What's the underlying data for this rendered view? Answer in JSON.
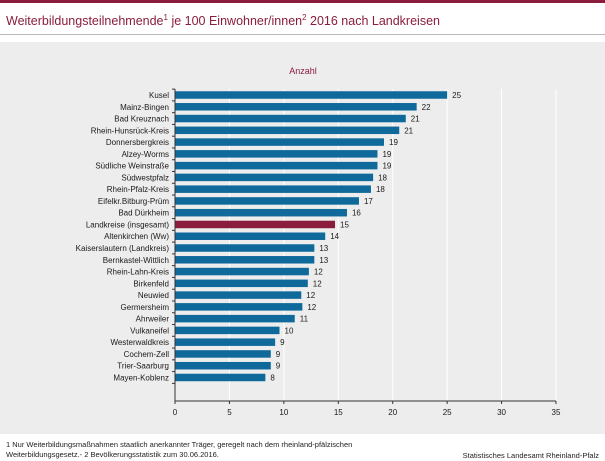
{
  "title": {
    "main": "Weiterbildungsteilnehmende",
    "sup1": "1",
    "middle": " je 100 Einwohner/innen",
    "sup2": "2",
    "end": " 2016 nach Landkreisen"
  },
  "colors": {
    "bar": "#0f6a9b",
    "highlight": "#8b1d3c",
    "title": "#8b1d3c",
    "panel": "#ededed",
    "grid": "#ffffff"
  },
  "chart_data": {
    "type": "bar",
    "orientation": "horizontal",
    "unit_label": "Anzahl",
    "xlim": [
      0,
      35
    ],
    "xticks": [
      0,
      5,
      10,
      15,
      20,
      25,
      30,
      35
    ],
    "grid": true,
    "highlight_category": "Landkreise (insgesamt)",
    "categories": [
      "Kusel",
      "Mainz-Bingen",
      "Bad Kreuznach",
      "Rhein-Hunsrück-Kreis",
      "Donnersbergkreis",
      "Alzey-Worms",
      "Südliche Weinstraße",
      "Südwestpfalz",
      "Rhein-Pfalz-Kreis",
      "Eifelkr.Bitburg-Prüm",
      "Bad Dürkheim",
      "Landkreise (insgesamt)",
      "Altenkirchen (Ww)",
      "Kaiserslautern (Landkreis)",
      "Bernkastel-Wittlich",
      "Rhein-Lahn-Kreis",
      "Birkenfeld",
      "Neuwied",
      "Germersheim",
      "Ahrweiler",
      "Vulkaneifel",
      "Westerwaldkreis",
      "Cochem-Zell",
      "Trier-Saarburg",
      "Mayen-Koblenz"
    ],
    "values": [
      25.0,
      22.2,
      21.2,
      20.6,
      19.2,
      18.6,
      18.6,
      18.2,
      18.0,
      16.9,
      15.8,
      14.7,
      13.8,
      12.8,
      12.8,
      12.3,
      12.2,
      11.6,
      11.7,
      11.0,
      9.6,
      9.2,
      8.8,
      8.8,
      8.3
    ],
    "labels": [
      "25",
      "22",
      "21",
      "21",
      "19",
      "19",
      "19",
      "18",
      "18",
      "17",
      "16",
      "15",
      "14",
      "13",
      "13",
      "12",
      "12",
      "12",
      "12",
      "11",
      "10",
      "9",
      "9",
      "9",
      "8"
    ]
  },
  "footnote": {
    "line1": "1 Nur Weiterbildungsmaßnahmen staatlich anerkannter Träger, geregelt nach dem rheinland-pfälzischen",
    "line2": "Weiterbildungsgesetz.- 2 Bevölkerungsstatistik zum 30.06.2016."
  },
  "source": "Statistisches Landesamt Rheinland-Pfalz"
}
